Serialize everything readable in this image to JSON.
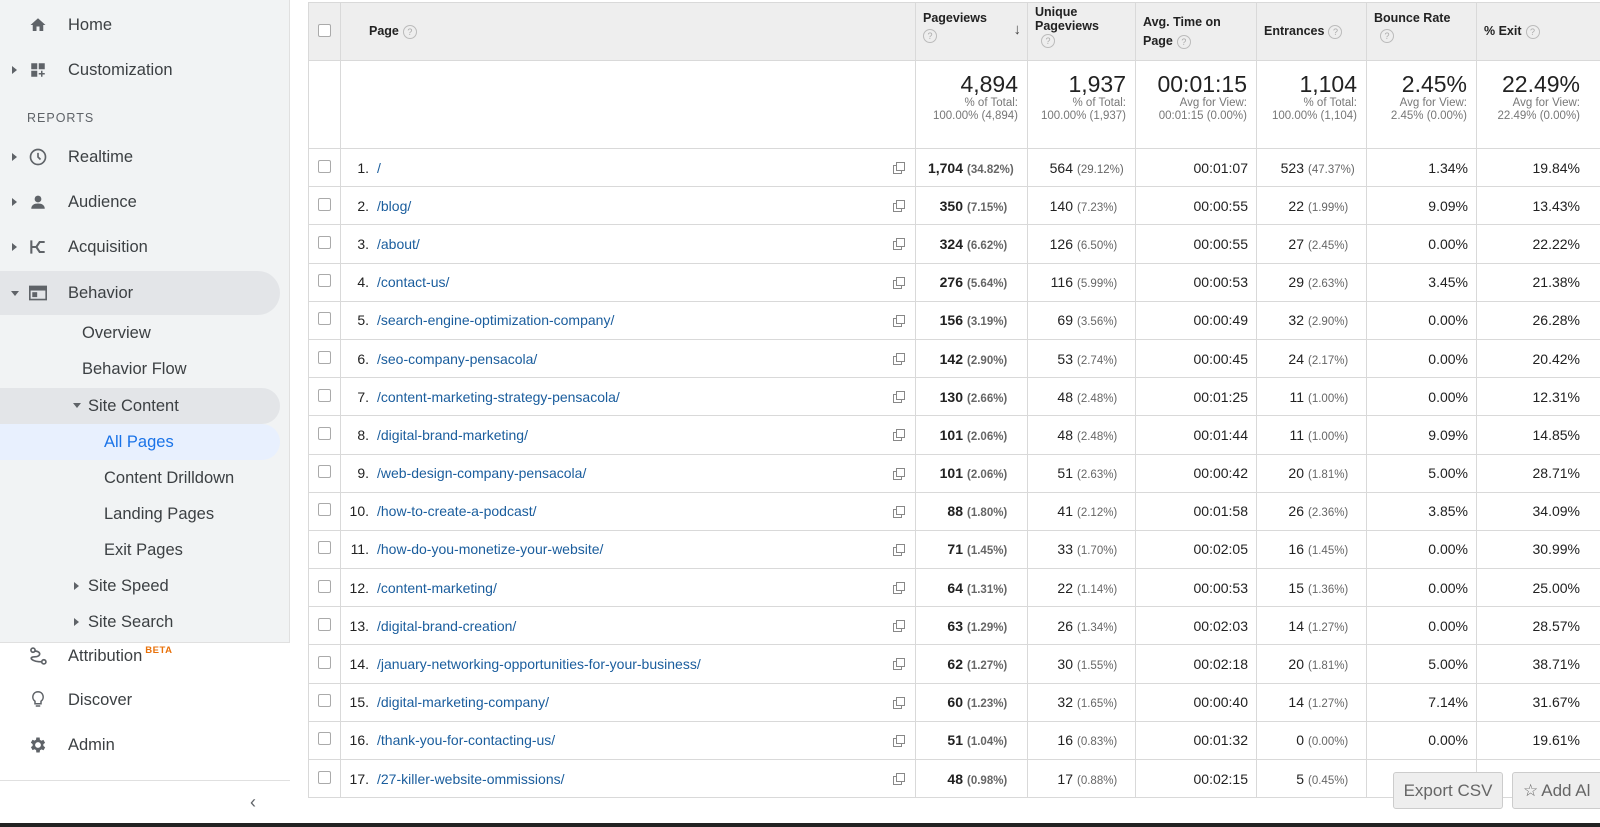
{
  "sidebar": {
    "home": "Home",
    "customization": "Customization",
    "reports_heading": "REPORTS",
    "realtime": "Realtime",
    "audience": "Audience",
    "acquisition": "Acquisition",
    "behavior": "Behavior",
    "overview": "Overview",
    "behavior_flow": "Behavior Flow",
    "site_content": "Site Content",
    "all_pages": "All Pages",
    "content_drilldown": "Content Drilldown",
    "landing_pages": "Landing Pages",
    "exit_pages": "Exit Pages",
    "site_speed": "Site Speed",
    "site_search": "Site Search",
    "attribution": "Attribution",
    "beta": "BETA",
    "discover": "Discover",
    "admin": "Admin",
    "collapse": "‹"
  },
  "table": {
    "headers": {
      "page": "Page",
      "pageviews": "Pageviews",
      "unique_pageviews": "Unique Pageviews",
      "avg_time": "Avg. Time on Page",
      "entrances": "Entrances",
      "bounce_rate": "Bounce Rate",
      "exit": "% Exit"
    },
    "totals": {
      "pageviews": "4,894",
      "pageviews_sub": "% of Total: 100.00% (4,894)",
      "unique": "1,937",
      "unique_sub": "% of Total: 100.00% (1,937)",
      "avg_time": "00:01:15",
      "avg_time_sub": "Avg for View: 00:01:15 (0.00%)",
      "entrances": "1,104",
      "entrances_sub": "% of Total: 100.00% (1,104)",
      "bounce": "2.45%",
      "bounce_sub": "Avg for View: 2.45% (0.00%)",
      "exit": "22.49%",
      "exit_sub": "Avg for View: 22.49% (0.00%)"
    },
    "rows": [
      {
        "idx": "1.",
        "page": "/",
        "pv": "1,704",
        "pv_pct": "(34.82%)",
        "upv": "564",
        "upv_pct": "(29.12%)",
        "time": "00:01:07",
        "ent": "523",
        "ent_pct": "(47.37%)",
        "bounce": "1.34%",
        "exit": "19.84%"
      },
      {
        "idx": "2.",
        "page": "/blog/",
        "pv": "350",
        "pv_pct": "(7.15%)",
        "upv": "140",
        "upv_pct": "(7.23%)",
        "time": "00:00:55",
        "ent": "22",
        "ent_pct": "(1.99%)",
        "bounce": "9.09%",
        "exit": "13.43%"
      },
      {
        "idx": "3.",
        "page": "/about/",
        "pv": "324",
        "pv_pct": "(6.62%)",
        "upv": "126",
        "upv_pct": "(6.50%)",
        "time": "00:00:55",
        "ent": "27",
        "ent_pct": "(2.45%)",
        "bounce": "0.00%",
        "exit": "22.22%"
      },
      {
        "idx": "4.",
        "page": "/contact-us/",
        "pv": "276",
        "pv_pct": "(5.64%)",
        "upv": "116",
        "upv_pct": "(5.99%)",
        "time": "00:00:53",
        "ent": "29",
        "ent_pct": "(2.63%)",
        "bounce": "3.45%",
        "exit": "21.38%"
      },
      {
        "idx": "5.",
        "page": "/search-engine-optimization-company/",
        "pv": "156",
        "pv_pct": "(3.19%)",
        "upv": "69",
        "upv_pct": "(3.56%)",
        "time": "00:00:49",
        "ent": "32",
        "ent_pct": "(2.90%)",
        "bounce": "0.00%",
        "exit": "26.28%"
      },
      {
        "idx": "6.",
        "page": "/seo-company-pensacola/",
        "pv": "142",
        "pv_pct": "(2.90%)",
        "upv": "53",
        "upv_pct": "(2.74%)",
        "time": "00:00:45",
        "ent": "24",
        "ent_pct": "(2.17%)",
        "bounce": "0.00%",
        "exit": "20.42%"
      },
      {
        "idx": "7.",
        "page": "/content-marketing-strategy-pensacola/",
        "pv": "130",
        "pv_pct": "(2.66%)",
        "upv": "48",
        "upv_pct": "(2.48%)",
        "time": "00:01:25",
        "ent": "11",
        "ent_pct": "(1.00%)",
        "bounce": "0.00%",
        "exit": "12.31%"
      },
      {
        "idx": "8.",
        "page": "/digital-brand-marketing/",
        "pv": "101",
        "pv_pct": "(2.06%)",
        "upv": "48",
        "upv_pct": "(2.48%)",
        "time": "00:01:44",
        "ent": "11",
        "ent_pct": "(1.00%)",
        "bounce": "9.09%",
        "exit": "14.85%"
      },
      {
        "idx": "9.",
        "page": "/web-design-company-pensacola/",
        "pv": "101",
        "pv_pct": "(2.06%)",
        "upv": "51",
        "upv_pct": "(2.63%)",
        "time": "00:00:42",
        "ent": "20",
        "ent_pct": "(1.81%)",
        "bounce": "5.00%",
        "exit": "28.71%"
      },
      {
        "idx": "10.",
        "page": "/how-to-create-a-podcast/",
        "pv": "88",
        "pv_pct": "(1.80%)",
        "upv": "41",
        "upv_pct": "(2.12%)",
        "time": "00:01:58",
        "ent": "26",
        "ent_pct": "(2.36%)",
        "bounce": "3.85%",
        "exit": "34.09%"
      },
      {
        "idx": "11.",
        "page": "/how-do-you-monetize-your-website/",
        "pv": "71",
        "pv_pct": "(1.45%)",
        "upv": "33",
        "upv_pct": "(1.70%)",
        "time": "00:02:05",
        "ent": "16",
        "ent_pct": "(1.45%)",
        "bounce": "0.00%",
        "exit": "30.99%"
      },
      {
        "idx": "12.",
        "page": "/content-marketing/",
        "pv": "64",
        "pv_pct": "(1.31%)",
        "upv": "22",
        "upv_pct": "(1.14%)",
        "time": "00:00:53",
        "ent": "15",
        "ent_pct": "(1.36%)",
        "bounce": "0.00%",
        "exit": "25.00%"
      },
      {
        "idx": "13.",
        "page": "/digital-brand-creation/",
        "pv": "63",
        "pv_pct": "(1.29%)",
        "upv": "26",
        "upv_pct": "(1.34%)",
        "time": "00:02:03",
        "ent": "14",
        "ent_pct": "(1.27%)",
        "bounce": "0.00%",
        "exit": "28.57%"
      },
      {
        "idx": "14.",
        "page": "/january-networking-opportunities-for-your-business/",
        "pv": "62",
        "pv_pct": "(1.27%)",
        "upv": "30",
        "upv_pct": "(1.55%)",
        "time": "00:02:18",
        "ent": "20",
        "ent_pct": "(1.81%)",
        "bounce": "5.00%",
        "exit": "38.71%"
      },
      {
        "idx": "15.",
        "page": "/digital-marketing-company/",
        "pv": "60",
        "pv_pct": "(1.23%)",
        "upv": "32",
        "upv_pct": "(1.65%)",
        "time": "00:00:40",
        "ent": "14",
        "ent_pct": "(1.27%)",
        "bounce": "7.14%",
        "exit": "31.67%"
      },
      {
        "idx": "16.",
        "page": "/thank-you-for-contacting-us/",
        "pv": "51",
        "pv_pct": "(1.04%)",
        "upv": "16",
        "upv_pct": "(0.83%)",
        "time": "00:01:32",
        "ent": "0",
        "ent_pct": "(0.00%)",
        "bounce": "0.00%",
        "exit": "19.61%"
      },
      {
        "idx": "17.",
        "page": "/27-killer-website-ommissions/",
        "pv": "48",
        "pv_pct": "(0.98%)",
        "upv": "17",
        "upv_pct": "(0.88%)",
        "time": "00:02:15",
        "ent": "5",
        "ent_pct": "(0.45%)",
        "bounce": "",
        "exit": ""
      }
    ]
  },
  "actions": {
    "export_csv": "Export CSV",
    "add_all": "Add Al"
  },
  "colors": {
    "link": "#1a5d9d",
    "selected": "#1a73e8",
    "beta": "#e8710a"
  }
}
